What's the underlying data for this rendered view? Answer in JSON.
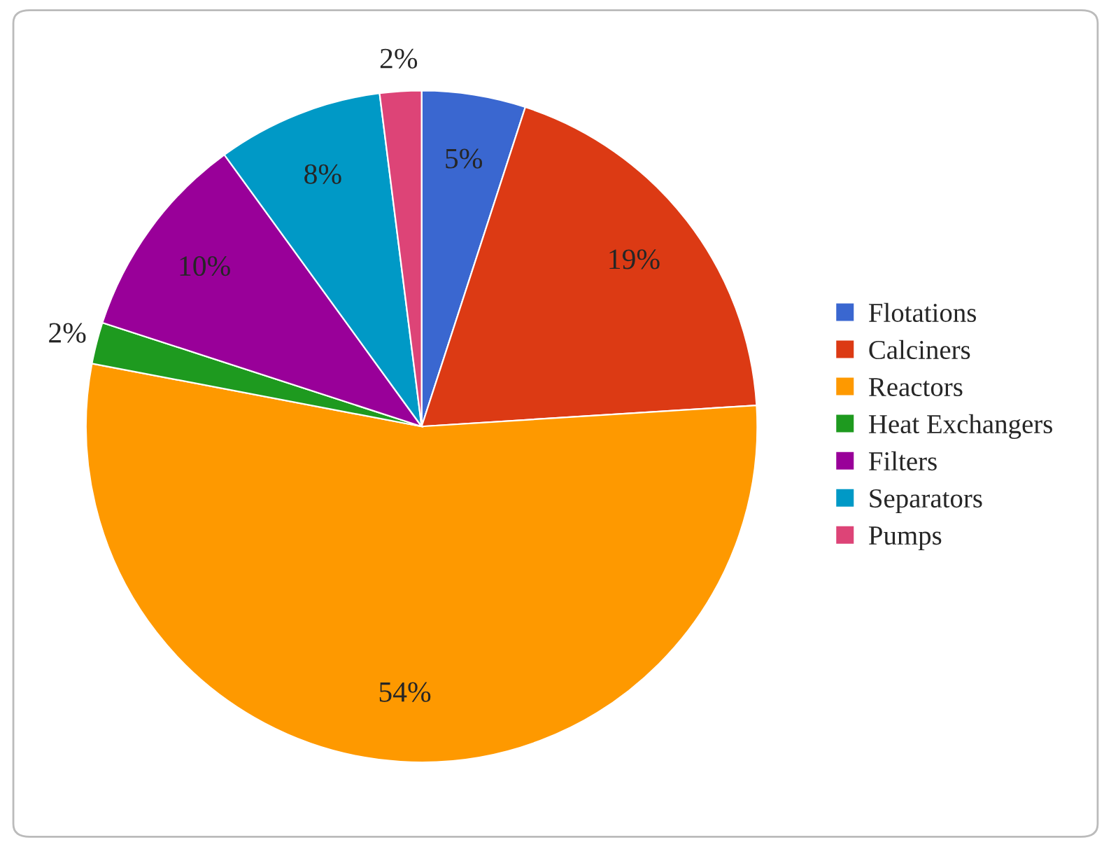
{
  "chart_data": {
    "type": "pie",
    "categories": [
      "Flotations",
      "Calciners",
      "Reactors",
      "Heat Exchangers",
      "Filters",
      "Separators",
      "Pumps"
    ],
    "values": [
      5,
      19,
      54,
      2,
      10,
      8,
      2
    ],
    "colors": [
      "#3a67d0",
      "#dc3a14",
      "#fe9900",
      "#1e9a1f",
      "#990099",
      "#0099c6",
      "#dd4477"
    ],
    "value_labels": [
      "5%",
      "19%",
      "54%",
      "2%",
      "10%",
      "8%",
      "2%"
    ],
    "legend": "right"
  }
}
